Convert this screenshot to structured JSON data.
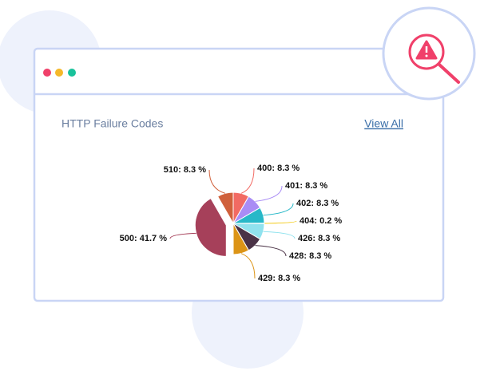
{
  "card": {
    "title": "HTTP Failure Codes",
    "link": "View All"
  },
  "chart_data": {
    "type": "pie",
    "values": [
      8.3,
      8.3,
      8.3,
      0.2,
      8.3,
      8.3,
      8.3,
      41.7,
      8.3
    ],
    "value_labels": [
      "400: 8.3 %",
      "401: 8.3 %",
      "402: 8.3 %",
      "404: 0.2 %",
      "426: 8.3 %",
      "428: 8.3 %",
      "429: 8.3 %",
      "500: 41.7 %",
      "510: 8.3 %"
    ],
    "colors": [
      "#f26a63",
      "#a98cf5",
      "#27b8c8",
      "#f2c80f",
      "#90e2ee",
      "#4a3246",
      "#dc9416",
      "#a6405a",
      "#d0603b"
    ]
  }
}
